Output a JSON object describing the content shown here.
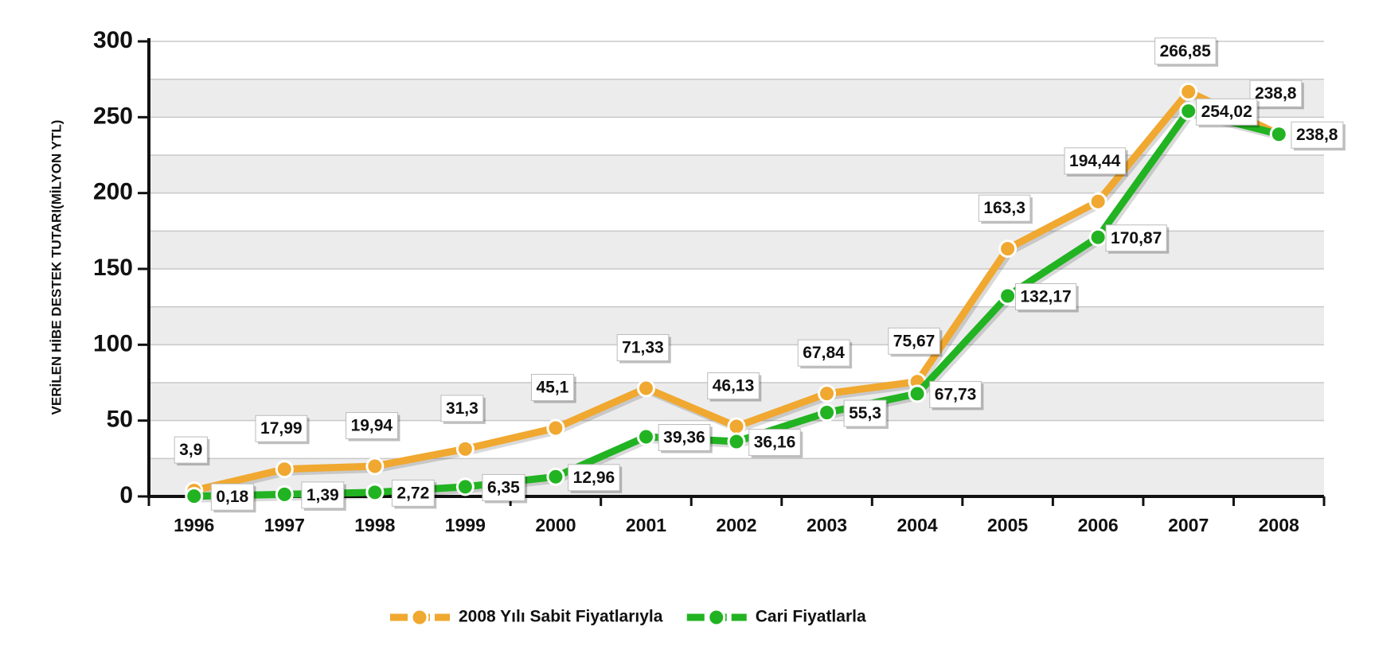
{
  "chart_data": {
    "type": "line",
    "y_label": "VERİLEN HİBE DESTEK TUTARI(MİLYON YTL)",
    "categories": [
      "1996",
      "1997",
      "1998",
      "1999",
      "2000",
      "2001",
      "2002",
      "2003",
      "2004",
      "2005",
      "2006",
      "2007",
      "2008"
    ],
    "series": [
      {
        "name": "2008 Yılı Sabit Fiyatlarıyla",
        "color": "#f0a830",
        "values": [
          3.9,
          17.99,
          19.94,
          31.3,
          45.1,
          71.33,
          46.13,
          67.84,
          75.67,
          163.3,
          194.44,
          266.85,
          238.8
        ],
        "value_labels": [
          "3,9",
          "17,99",
          "19,94",
          "31,3",
          "45,1",
          "71,33",
          "46,13",
          "67,84",
          "75,67",
          "163,3",
          "194,44",
          "266,85",
          "238,8"
        ]
      },
      {
        "name": "Cari Fiyatlarla",
        "color": "#22b322",
        "values": [
          0.18,
          1.39,
          2.72,
          6.35,
          12.96,
          39.36,
          36.16,
          55.3,
          67.73,
          132.17,
          170.87,
          254.02,
          238.8
        ],
        "value_labels": [
          "0,18",
          "1,39",
          "2,72",
          "6,35",
          "12,96",
          "39,36",
          "36,16",
          "55,3",
          "67,73",
          "132,17",
          "170,87",
          "254,02",
          "238,8"
        ]
      }
    ],
    "ylim": [
      0,
      300
    ],
    "yticks": [
      0,
      50,
      100,
      150,
      200,
      250,
      300
    ],
    "grid": true,
    "legend": "bottom"
  }
}
